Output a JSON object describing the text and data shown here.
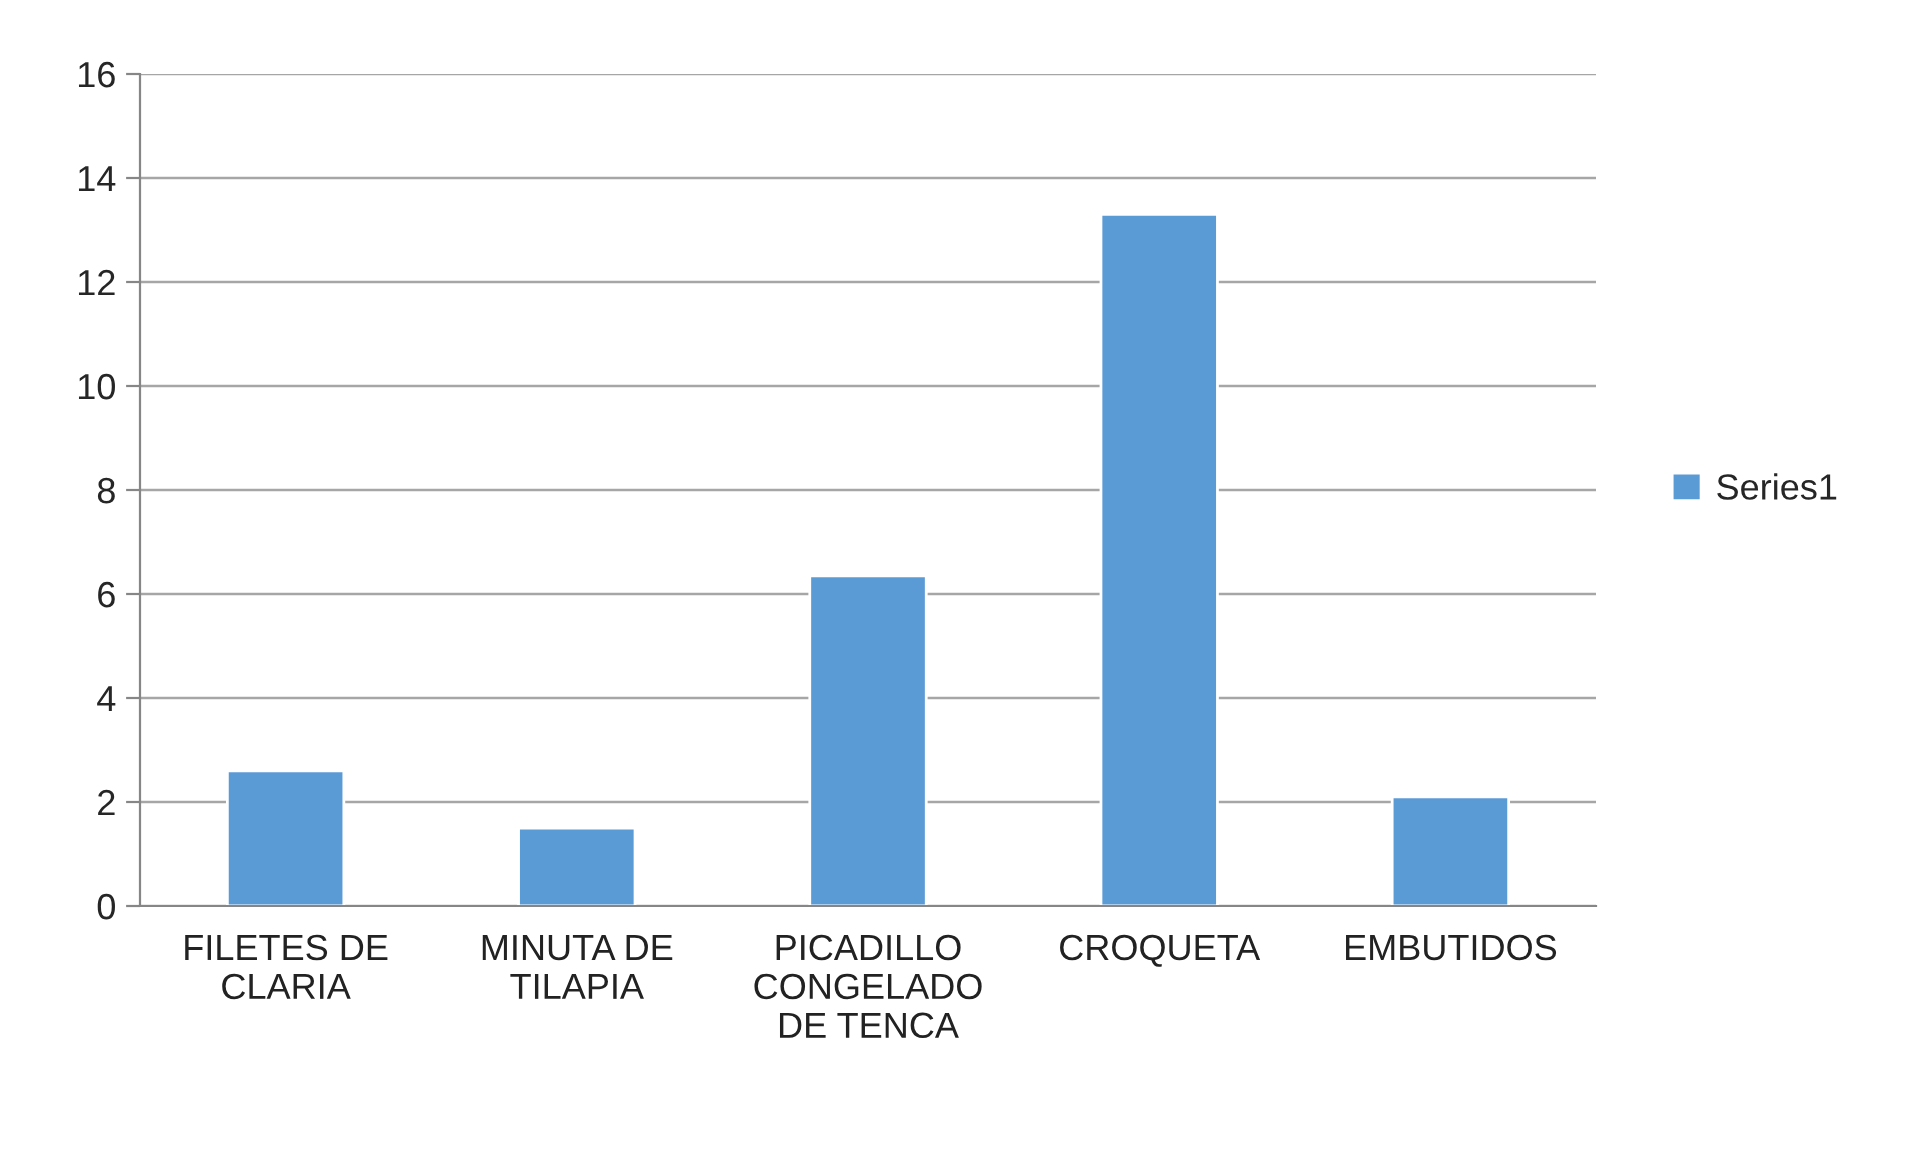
{
  "chart_data": {
    "type": "bar",
    "categories": [
      "FILETES DE\nCLARIA",
      "MINUTA DE\nTILAPIA",
      "PICADILLO\nCONGELADO\nDE TENCA",
      "CROQUETA",
      "EMBUTIDOS"
    ],
    "series": [
      {
        "name": "Series1",
        "color": "#5b9bd5",
        "values": [
          2.6,
          1.5,
          6.35,
          13.3,
          2.1
        ]
      }
    ],
    "ylim": [
      0,
      16
    ],
    "yticks": [
      0,
      2,
      4,
      6,
      8,
      10,
      12,
      14,
      16
    ],
    "grid": "y",
    "legend": "right"
  }
}
